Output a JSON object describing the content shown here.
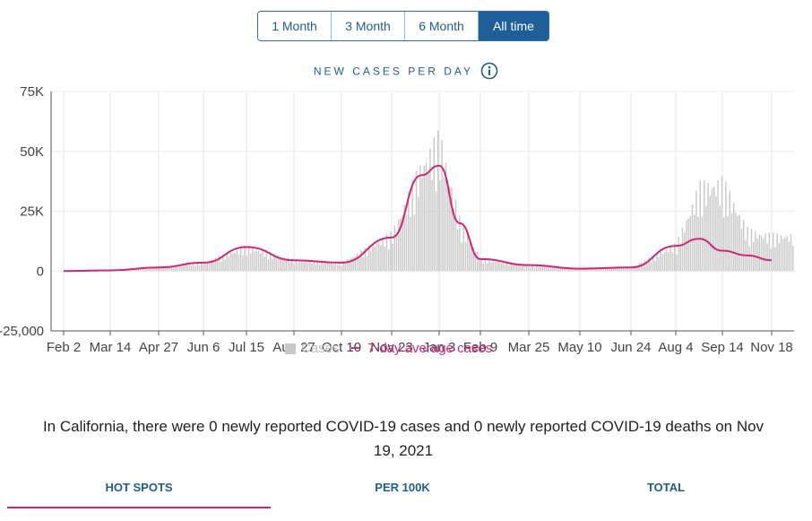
{
  "range_buttons": [
    {
      "label": "1 Month",
      "active": false
    },
    {
      "label": "3 Month",
      "active": false
    },
    {
      "label": "6 Month",
      "active": false
    },
    {
      "label": "All time",
      "active": true
    }
  ],
  "chart_title": "NEW CASES PER DAY",
  "colors": {
    "accent": "#d0267a",
    "bars": "#c8c8c8",
    "button_active": "#1f5f99",
    "link": "#1f5f8f"
  },
  "chart_data": {
    "type": "bar",
    "title": "NEW CASES PER DAY",
    "x_ticks": [
      "Feb 2",
      "Mar 14",
      "Apr 27",
      "Jun 6",
      "Jul 15",
      "Aug 27",
      "Oct 10",
      "Nov 23",
      "Jan 3",
      "Feb 9",
      "Mar 25",
      "May 10",
      "Jun 24",
      "Aug 4",
      "Sep 14",
      "Nov 18"
    ],
    "y_ticks": [
      "75K",
      "50K",
      "25K",
      "0",
      "-25,000"
    ],
    "ylim": [
      -25000,
      75000
    ],
    "grid": true,
    "legend": {
      "position": "bottom",
      "items": [
        "Cases",
        "7-day average cases"
      ]
    },
    "series": [
      {
        "name": "7-day average cases",
        "type": "line",
        "points": [
          [
            "Feb 2",
            0
          ],
          [
            "Mar 14",
            300
          ],
          [
            "Apr 27",
            1500
          ],
          [
            "Jun 6",
            3500
          ],
          [
            "Jul 15",
            10000
          ],
          [
            "Aug 27",
            4500
          ],
          [
            "Oct 10",
            3500
          ],
          [
            "Nov 23",
            14000
          ],
          [
            "Dec 15",
            40000
          ],
          [
            "Jan 3",
            44000
          ],
          [
            "Jan 20",
            20000
          ],
          [
            "Feb 9",
            5000
          ],
          [
            "Mar 25",
            2500
          ],
          [
            "May 10",
            1000
          ],
          [
            "Jun 24",
            1500
          ],
          [
            "Aug 4",
            10500
          ],
          [
            "Aug 20",
            13500
          ],
          [
            "Sep 14",
            8500
          ],
          [
            "Oct 20",
            6500
          ],
          [
            "Nov 18",
            4500
          ]
        ]
      },
      {
        "name": "Cases",
        "type": "bar",
        "points": [
          [
            "Feb 2",
            0
          ],
          [
            "Mar 14",
            400
          ],
          [
            "Apr 27",
            1800
          ],
          [
            "Jun 6",
            4000
          ],
          [
            "Jul 15",
            11000
          ],
          [
            "Aug 27",
            5000
          ],
          [
            "Oct 10",
            3800
          ],
          [
            "Nov 23",
            17000
          ],
          [
            "Dec 15",
            48000
          ],
          [
            "Jan 3",
            60000
          ],
          [
            "Jan 20",
            22000
          ],
          [
            "Feb 9",
            5500
          ],
          [
            "Mar 25",
            2800
          ],
          [
            "May 10",
            1100
          ],
          [
            "Jun 24",
            1700
          ],
          [
            "Aug 4",
            12000
          ],
          [
            "Aug 20",
            38000
          ],
          [
            "Sep 14",
            40000
          ],
          [
            "Oct 20",
            18000
          ],
          [
            "Nov 18",
            16000
          ]
        ]
      }
    ]
  },
  "summary_text": "In California, there were 0 newly reported COVID-19 cases and 0 newly reported COVID-19 deaths on Nov 19, 2021",
  "tabs": [
    {
      "label": "HOT SPOTS",
      "active": true
    },
    {
      "label": "PER 100K",
      "active": false
    },
    {
      "label": "TOTAL",
      "active": false
    }
  ]
}
